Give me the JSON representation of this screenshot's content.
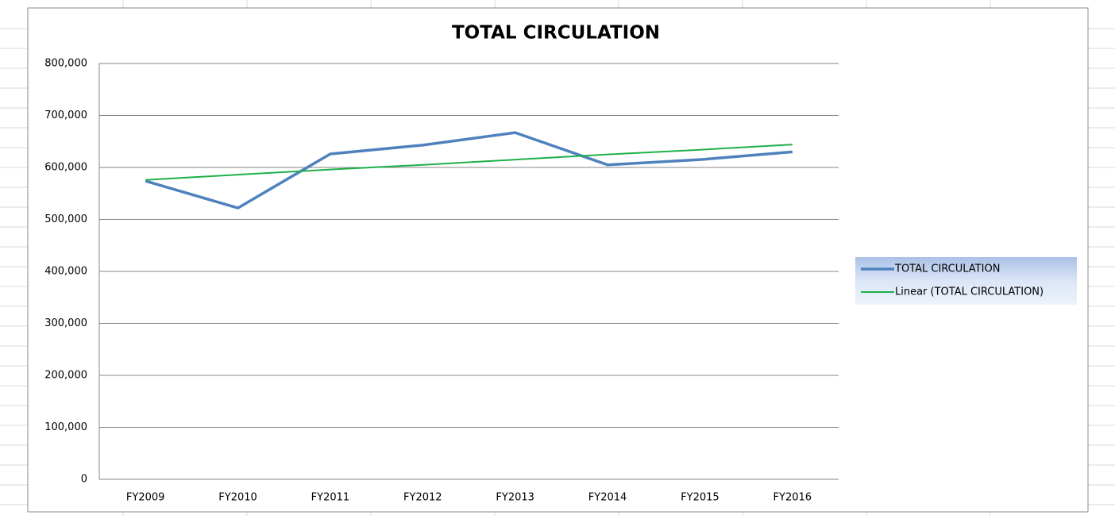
{
  "chart_data": {
    "type": "line",
    "title": "TOTAL CIRCULATION",
    "categories": [
      "FY2009",
      "FY2010",
      "FY2011",
      "FY2012",
      "FY2013",
      "FY2014",
      "FY2015",
      "FY2016"
    ],
    "series": [
      {
        "name": "TOTAL CIRCULATION",
        "color": "#4f81bd",
        "values": [
          574000,
          522000,
          626000,
          643000,
          667000,
          605000,
          615000,
          630000
        ]
      },
      {
        "name": "Linear (TOTAL CIRCULATION)",
        "color": "#1fb04a",
        "values": [
          576000,
          586000,
          596000,
          605000,
          615000,
          625000,
          634000,
          644000
        ]
      }
    ],
    "ylim": [
      0,
      800000
    ],
    "yticks": [
      0,
      {
        "value": 100000,
        "label": "100,000"
      },
      {
        "value": 200000,
        "label": "200,000"
      },
      {
        "value": 300000,
        "label": "300,000"
      },
      {
        "value": 400000,
        "label": "400,000"
      },
      {
        "value": 500000,
        "label": "500,000"
      },
      {
        "value": 600000,
        "label": "600,000"
      },
      {
        "value": 700000,
        "label": "700,000"
      },
      {
        "value": 800000,
        "label": "800,000"
      }
    ],
    "grid": true,
    "legend": "right"
  }
}
